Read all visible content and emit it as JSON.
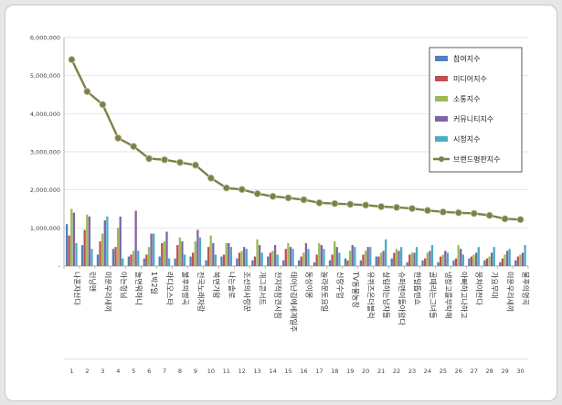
{
  "chart_data": {
    "type": "bar",
    "title": "",
    "xlabel": "",
    "ylabel": "",
    "ylim": [
      0,
      6000000
    ],
    "yticks": [
      0,
      1000000,
      2000000,
      3000000,
      4000000,
      5000000,
      6000000
    ],
    "ytick_labels": [
      "-",
      "1,000,000",
      "2,000,000",
      "3,000,000",
      "4,000,000",
      "5,000,000",
      "6,000,000"
    ],
    "grid": true,
    "legend_position": "top-right",
    "categories": [
      "나혼자산다",
      "런닝맨",
      "미운우리새끼",
      "아는형님",
      "놀면뭐하니",
      "1박2일",
      "라디오스타",
      "불후의명곡",
      "전국노래자랑",
      "복면가왕",
      "나는솔로",
      "조선의사랑꾼",
      "개그콘서트",
      "전지적참견시점",
      "태어난김에세계일주",
      "동상이몽",
      "놀라운토요일",
      "신랑수업",
      "TV동물농장",
      "유퀴즈온더블럭",
      "살림하는남자들",
      "슈퍼맨이돌아왔다",
      "한일톱텐쇼",
      "골때리는그녀들",
      "냉장고를부탁해",
      "아빠하고나하고",
      "뭉쳐야찬다",
      "가요무대",
      "미운우리새끼",
      "불후의명곡"
    ],
    "category_numbers": [
      "1",
      "2",
      "3",
      "4",
      "5",
      "6",
      "7",
      "8",
      "9",
      "10",
      "11",
      "12",
      "13",
      "14",
      "15",
      "16",
      "17",
      "18",
      "19",
      "20",
      "21",
      "22",
      "23",
      "24",
      "25",
      "26",
      "27",
      "28",
      "29",
      "30"
    ],
    "series": [
      {
        "name": "참여지수",
        "kind": "bar",
        "color": "#4f81bd",
        "values": [
          1100000,
          550000,
          300000,
          450000,
          250000,
          200000,
          250000,
          200000,
          250000,
          150000,
          250000,
          200000,
          150000,
          250000,
          150000,
          150000,
          100000,
          150000,
          200000,
          150000,
          250000,
          200000,
          100000,
          150000,
          100000,
          150000,
          200000,
          150000,
          100000,
          150000
        ]
      },
      {
        "name": "미디어지수",
        "kind": "bar",
        "color": "#c0504d",
        "values": [
          800000,
          950000,
          650000,
          500000,
          300000,
          300000,
          600000,
          550000,
          350000,
          500000,
          300000,
          350000,
          250000,
          350000,
          450000,
          250000,
          300000,
          300000,
          150000,
          300000,
          250000,
          350000,
          300000,
          200000,
          250000,
          200000,
          250000,
          200000,
          200000,
          250000
        ]
      },
      {
        "name": "소통지수",
        "kind": "bar",
        "color": "#9bbb59",
        "values": [
          1500000,
          1350000,
          850000,
          1000000,
          400000,
          500000,
          650000,
          750000,
          650000,
          800000,
          600000,
          400000,
          700000,
          400000,
          600000,
          350000,
          600000,
          650000,
          400000,
          400000,
          350000,
          450000,
          350000,
          350000,
          300000,
          550000,
          300000,
          250000,
          300000,
          300000
        ]
      },
      {
        "name": "커뮤니티지수",
        "kind": "bar",
        "color": "#8064a2",
        "values": [
          1400000,
          1300000,
          1200000,
          1300000,
          1450000,
          850000,
          900000,
          650000,
          950000,
          600000,
          600000,
          500000,
          550000,
          550000,
          500000,
          600000,
          550000,
          500000,
          550000,
          500000,
          400000,
          400000,
          350000,
          400000,
          400000,
          450000,
          350000,
          350000,
          400000,
          350000
        ]
      },
      {
        "name": "시청지수",
        "kind": "bar",
        "color": "#4bacc6",
        "values": [
          600000,
          450000,
          1300000,
          200000,
          400000,
          850000,
          200000,
          300000,
          750000,
          300000,
          500000,
          450000,
          350000,
          300000,
          450000,
          450000,
          450000,
          350000,
          500000,
          500000,
          700000,
          500000,
          500000,
          550000,
          350000,
          300000,
          500000,
          500000,
          450000,
          550000
        ]
      },
      {
        "name": "브랜드평판지수",
        "kind": "line",
        "color": "#7f7f4c",
        "values": [
          5420000,
          4580000,
          4240000,
          3360000,
          3140000,
          2820000,
          2790000,
          2720000,
          2650000,
          2310000,
          2050000,
          2010000,
          1900000,
          1830000,
          1790000,
          1740000,
          1660000,
          1640000,
          1620000,
          1600000,
          1560000,
          1540000,
          1510000,
          1460000,
          1420000,
          1400000,
          1380000,
          1330000,
          1240000,
          1220000
        ]
      }
    ]
  }
}
